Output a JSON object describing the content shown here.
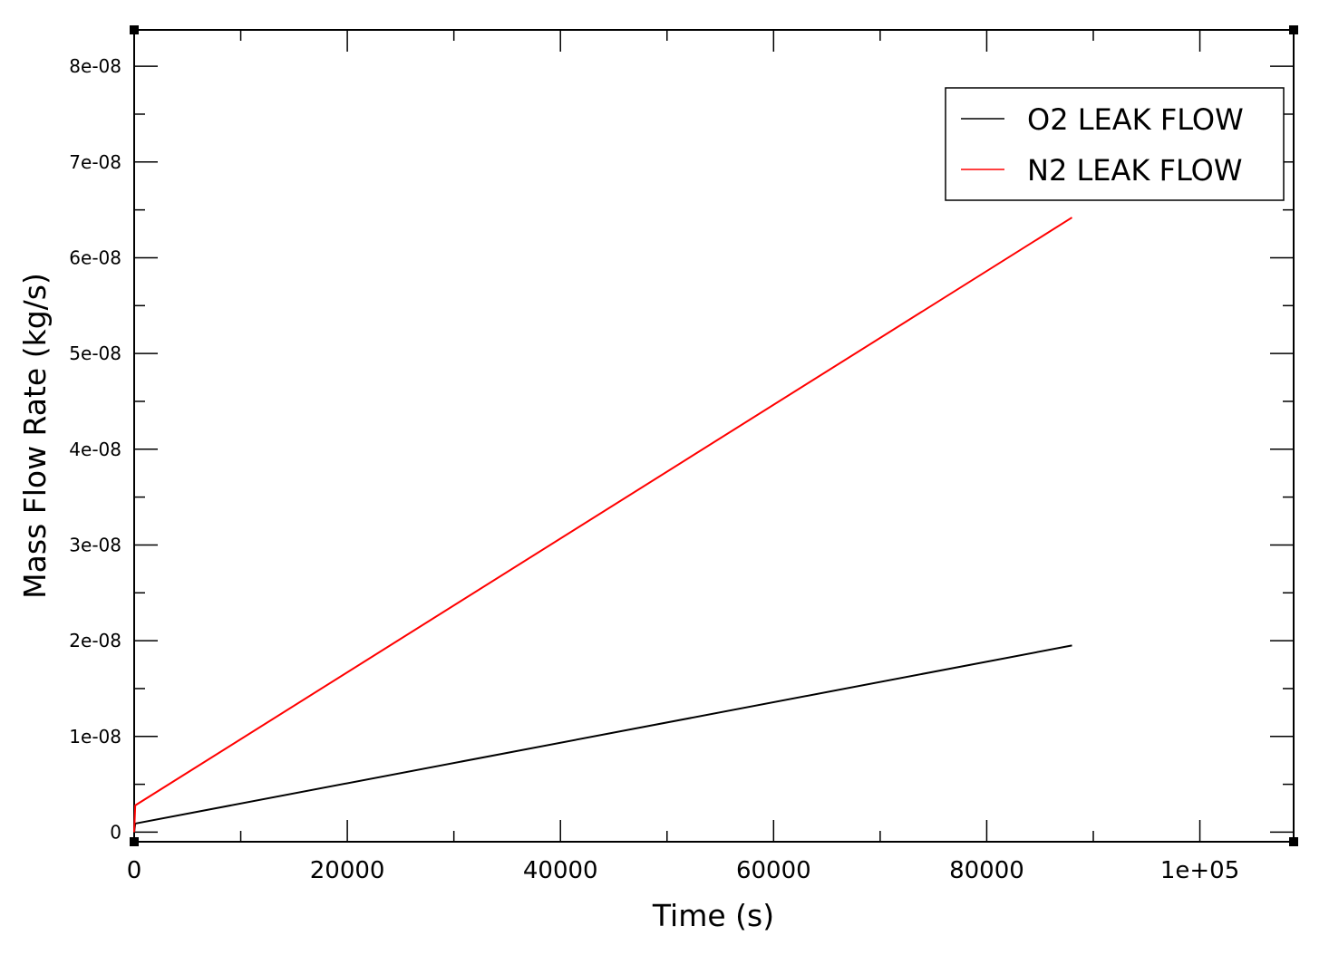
{
  "chart_data": {
    "type": "line",
    "xlabel": "Time (s)",
    "ylabel": "Mass Flow Rate (kg/s)",
    "xlim": [
      0,
      108800
    ],
    "ylim": [
      -1e-09,
      8.38e-08
    ],
    "x_ticks": [
      0,
      20000,
      40000,
      60000,
      80000,
      100000
    ],
    "x_tick_labels": [
      "0",
      "20000",
      "40000",
      "60000",
      "80000",
      "1e+05"
    ],
    "y_ticks": [
      0,
      1e-08,
      2e-08,
      3e-08,
      4e-08,
      5e-08,
      6e-08,
      7e-08,
      8e-08
    ],
    "y_tick_labels": [
      "0",
      "1e-08",
      "2e-08",
      "3e-08",
      "4e-08",
      "5e-08",
      "6e-08",
      "7e-08",
      "8e-08"
    ],
    "grid": false,
    "legend_position": "top-right",
    "series": [
      {
        "name": "O2 LEAK FLOW",
        "color": "#000000",
        "points": [
          [
            0,
            0.0
          ],
          [
            100,
            9e-10
          ],
          [
            88000,
            1.95e-08
          ]
        ]
      },
      {
        "name": "N2 LEAK FLOW",
        "color": "#ff0000",
        "points": [
          [
            0,
            0.0
          ],
          [
            100,
            2.8e-09
          ],
          [
            88000,
            6.42e-08
          ]
        ]
      }
    ]
  }
}
